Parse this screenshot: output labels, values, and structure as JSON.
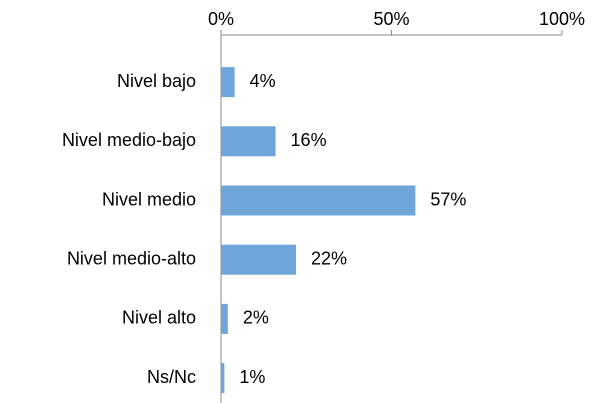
{
  "chart_data": {
    "type": "bar",
    "orientation": "horizontal",
    "categories": [
      "Nivel bajo",
      "Nivel medio-bajo",
      "Nivel medio",
      "Nivel medio-alto",
      "Nivel alto",
      "Ns/Nc"
    ],
    "values": [
      4,
      16,
      57,
      22,
      2,
      1
    ],
    "value_labels": [
      "4%",
      "16%",
      "57%",
      "22%",
      "2%",
      "1%"
    ],
    "color": "#6ea6db",
    "xlim": [
      0,
      100
    ],
    "xticks": [
      {
        "value": 0,
        "label": "0%"
      },
      {
        "value": 50,
        "label": "50%"
      },
      {
        "value": 100,
        "label": "100%"
      }
    ],
    "grid": false
  }
}
